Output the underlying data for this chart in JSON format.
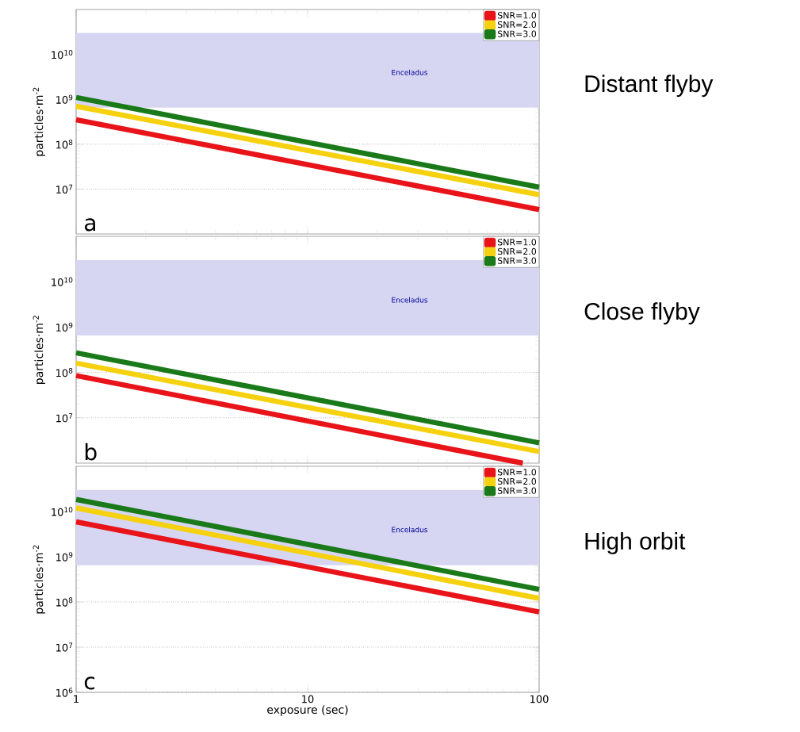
{
  "chart_data": [
    {
      "type": "line",
      "xlim": [
        1,
        100
      ],
      "ylim": [
        1000000,
        100000000000
      ],
      "log": "xy",
      "grid": "y",
      "legend": "top right",
      "tick_labels": "y",
      "ylabel": "particles·m$^{-2}$",
      "xticks": [
        1,
        10,
        100
      ],
      "yticks": [
        {
          "value": 10000000,
          "label": "10$^{7}$"
        },
        {
          "value": 100000000,
          "label": "10$^{8}$"
        },
        {
          "value": 1000000000,
          "label": "10$^{9}$"
        },
        {
          "value": 10000000000,
          "label": "10$^{10}$"
        }
      ],
      "bands": [
        {
          "axis": "y",
          "from": 650000000,
          "to": 30000000000,
          "label": "Enceladus",
          "color": "#d6d6f2"
        }
      ],
      "annotations": [
        "a",
        "Distant flyby"
      ],
      "series": [
        {
          "name": "SNR=1.0",
          "color": "#e8141a",
          "x": [
            1,
            100
          ],
          "values": [
            350000000,
            3500000
          ]
        },
        {
          "name": "SNR=2.0",
          "color": "#f5d10f",
          "x": [
            1,
            100
          ],
          "values": [
            700000000,
            7500000
          ]
        },
        {
          "name": "SNR=3.0",
          "color": "#1a7a1a",
          "x": [
            1,
            100
          ],
          "values": [
            1100000000,
            11000000
          ]
        }
      ]
    },
    {
      "type": "line",
      "xlim": [
        1,
        100
      ],
      "ylim": [
        1000000,
        100000000000
      ],
      "log": "xy",
      "grid": "y",
      "legend": "top right",
      "tick_labels": "y",
      "ylabel": "particles·m$^{-2}$",
      "xticks": [
        1,
        10,
        100
      ],
      "yticks": [
        {
          "value": 10000000,
          "label": "10$^{7}$"
        },
        {
          "value": 100000000,
          "label": "10$^{8}$"
        },
        {
          "value": 1000000000,
          "label": "10$^{9}$"
        },
        {
          "value": 10000000000,
          "label": "10$^{10}$"
        }
      ],
      "bands": [
        {
          "axis": "y",
          "from": 650000000,
          "to": 30000000000,
          "label": "Enceladus",
          "color": "#d6d6f2"
        }
      ],
      "annotations": [
        "b",
        "Close flyby"
      ],
      "series": [
        {
          "name": "SNR=1.0",
          "color": "#e8141a",
          "x": [
            1,
            85
          ],
          "values": [
            85000000,
            1000000
          ]
        },
        {
          "name": "SNR=2.0",
          "color": "#f5d10f",
          "x": [
            1,
            100
          ],
          "values": [
            160000000,
            1800000
          ]
        },
        {
          "name": "SNR=3.0",
          "color": "#1a7a1a",
          "x": [
            1,
            100
          ],
          "values": [
            270000000,
            2800000
          ]
        }
      ]
    },
    {
      "type": "line",
      "xlim": [
        1,
        100
      ],
      "ylim": [
        1000000,
        100000000000
      ],
      "log": "xy",
      "grid": "y",
      "legend": "top right",
      "ylabel": "particles·m$^{-2}$",
      "xlabel": "exposure (sec)",
      "xticks": [
        1,
        10,
        100
      ],
      "yticks": [
        {
          "value": 1000000,
          "label": "10$^{6}$"
        },
        {
          "value": 10000000,
          "label": "10$^{7}$"
        },
        {
          "value": 100000000,
          "label": "10$^{8}$"
        },
        {
          "value": 1000000000,
          "label": "10$^{9}$"
        },
        {
          "value": 10000000000,
          "label": "10$^{10}$"
        }
      ],
      "bands": [
        {
          "axis": "y",
          "from": 650000000,
          "to": 30000000000,
          "label": "Enceladus",
          "color": "#d6d6f2"
        }
      ],
      "annotations": [
        "c",
        "High orbit"
      ],
      "series": [
        {
          "name": "SNR=1.0",
          "color": "#e8141a",
          "x": [
            1,
            100
          ],
          "values": [
            5900000000,
            60000000
          ]
        },
        {
          "name": "SNR=2.0",
          "color": "#f5d10f",
          "x": [
            1,
            100
          ],
          "values": [
            12000000000,
            120000000
          ]
        },
        {
          "name": "SNR=3.0",
          "color": "#1a7a1a",
          "x": [
            1,
            100
          ],
          "values": [
            18500000000,
            190000000
          ]
        }
      ]
    }
  ]
}
